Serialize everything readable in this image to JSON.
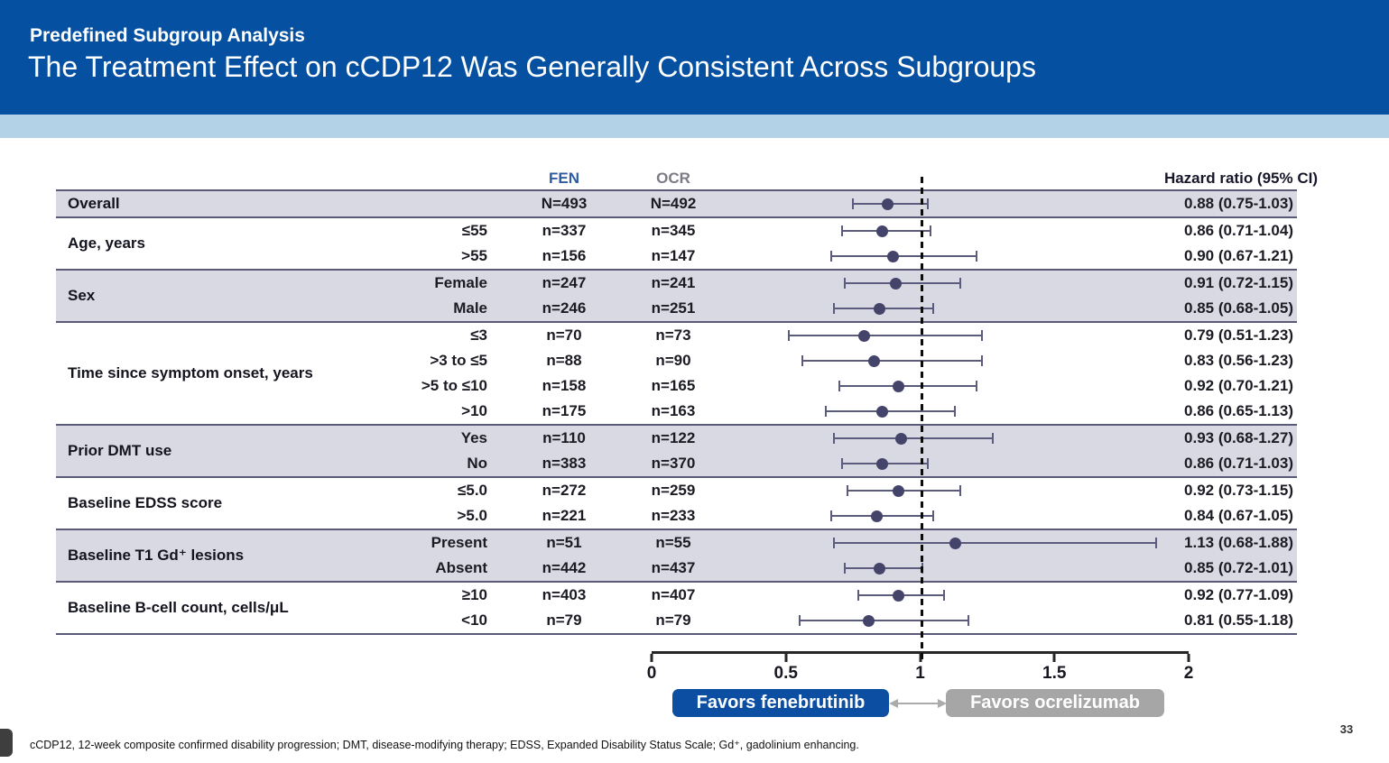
{
  "header": {
    "kicker": "Predefined Subgroup Analysis",
    "title": "The Treatment Effect on cCDP12 Was Generally Consistent Across Subgroups"
  },
  "table": {
    "col_fen": "FEN",
    "col_ocr": "OCR",
    "col_hr": "Hazard ratio (95% CI)"
  },
  "chart_data": {
    "type": "forest",
    "title": "Hazard ratios (95% CI) for cCDP12 by subgroup, FEN vs OCR",
    "axis": {
      "min": 0,
      "max": 2,
      "reference_line": 1,
      "ticks": [
        {
          "v": 0,
          "label": "0"
        },
        {
          "v": 0.5,
          "label": "0.5"
        },
        {
          "v": 1,
          "label": "1"
        },
        {
          "v": 1.5,
          "label": "1.5"
        },
        {
          "v": 2,
          "label": "2"
        }
      ]
    },
    "favors_left": "Favors fenebrutinib",
    "favors_right": "Favors ocrelizumab",
    "groups": [
      {
        "label": "Overall",
        "shaded": true,
        "rows": [
          {
            "sub": "",
            "fen": "N=493",
            "ocr": "N=492",
            "hr": 0.88,
            "lo": 0.75,
            "hi": 1.03,
            "hr_text": "0.88 (0.75-1.03)"
          }
        ]
      },
      {
        "label": "Age, years",
        "shaded": false,
        "rows": [
          {
            "sub": "≤55",
            "fen": "n=337",
            "ocr": "n=345",
            "hr": 0.86,
            "lo": 0.71,
            "hi": 1.04,
            "hr_text": "0.86 (0.71-1.04)"
          },
          {
            "sub": ">55",
            "fen": "n=156",
            "ocr": "n=147",
            "hr": 0.9,
            "lo": 0.67,
            "hi": 1.21,
            "hr_text": "0.90 (0.67-1.21)"
          }
        ]
      },
      {
        "label": "Sex",
        "shaded": true,
        "rows": [
          {
            "sub": "Female",
            "fen": "n=247",
            "ocr": "n=241",
            "hr": 0.91,
            "lo": 0.72,
            "hi": 1.15,
            "hr_text": "0.91 (0.72-1.15)"
          },
          {
            "sub": "Male",
            "fen": "n=246",
            "ocr": "n=251",
            "hr": 0.85,
            "lo": 0.68,
            "hi": 1.05,
            "hr_text": "0.85 (0.68-1.05)"
          }
        ]
      },
      {
        "label": "Time since symptom onset, years",
        "shaded": false,
        "rows": [
          {
            "sub": "≤3",
            "fen": "n=70",
            "ocr": "n=73",
            "hr": 0.79,
            "lo": 0.51,
            "hi": 1.23,
            "hr_text": "0.79 (0.51-1.23)"
          },
          {
            "sub": ">3 to ≤5",
            "fen": "n=88",
            "ocr": "n=90",
            "hr": 0.83,
            "lo": 0.56,
            "hi": 1.23,
            "hr_text": "0.83 (0.56-1.23)"
          },
          {
            "sub": ">5 to ≤10",
            "fen": "n=158",
            "ocr": "n=165",
            "hr": 0.92,
            "lo": 0.7,
            "hi": 1.21,
            "hr_text": "0.92 (0.70-1.21)"
          },
          {
            "sub": ">10",
            "fen": "n=175",
            "ocr": "n=163",
            "hr": 0.86,
            "lo": 0.65,
            "hi": 1.13,
            "hr_text": "0.86 (0.65-1.13)"
          }
        ]
      },
      {
        "label": "Prior DMT use",
        "shaded": true,
        "rows": [
          {
            "sub": "Yes",
            "fen": "n=110",
            "ocr": "n=122",
            "hr": 0.93,
            "lo": 0.68,
            "hi": 1.27,
            "hr_text": "0.93 (0.68-1.27)"
          },
          {
            "sub": "No",
            "fen": "n=383",
            "ocr": "n=370",
            "hr": 0.86,
            "lo": 0.71,
            "hi": 1.03,
            "hr_text": "0.86 (0.71-1.03)"
          }
        ]
      },
      {
        "label": "Baseline EDSS score",
        "shaded": false,
        "rows": [
          {
            "sub": "≤5.0",
            "fen": "n=272",
            "ocr": "n=259",
            "hr": 0.92,
            "lo": 0.73,
            "hi": 1.15,
            "hr_text": "0.92 (0.73-1.15)"
          },
          {
            "sub": ">5.0",
            "fen": "n=221",
            "ocr": "n=233",
            "hr": 0.84,
            "lo": 0.67,
            "hi": 1.05,
            "hr_text": "0.84 (0.67-1.05)"
          }
        ]
      },
      {
        "label": "Baseline T1 Gd⁺ lesions",
        "shaded": true,
        "rows": [
          {
            "sub": "Present",
            "fen": "n=51",
            "ocr": "n=55",
            "hr": 1.13,
            "lo": 0.68,
            "hi": 1.88,
            "hr_text": "1.13 (0.68-1.88)"
          },
          {
            "sub": "Absent",
            "fen": "n=442",
            "ocr": "n=437",
            "hr": 0.85,
            "lo": 0.72,
            "hi": 1.01,
            "hr_text": "0.85 (0.72-1.01)"
          }
        ]
      },
      {
        "label": "Baseline B-cell count, cells/μL",
        "shaded": false,
        "rows": [
          {
            "sub": "≥10",
            "fen": "n=403",
            "ocr": "n=407",
            "hr": 0.92,
            "lo": 0.77,
            "hi": 1.09,
            "hr_text": "0.92 (0.77-1.09)"
          },
          {
            "sub": "<10",
            "fen": "n=79",
            "ocr": "n=79",
            "hr": 0.81,
            "lo": 0.55,
            "hi": 1.18,
            "hr_text": "0.81 (0.55-1.18)"
          }
        ]
      }
    ]
  },
  "footnote": "cCDP12, 12-week composite confirmed disability progression; DMT, disease-modifying therapy; EDSS, Expanded Disability Status Scale; Gd⁺, gadolinium enhancing.",
  "page_number": "33",
  "colors": {
    "banner_blue": "#0550A0",
    "strip_blue": "#B4D2E7",
    "row_shade": "#D9D9E3",
    "group_border": "#5A5A78",
    "marker": "#44446A",
    "ci_line": "#5B5B7E",
    "fen_blue": "#2D5BA6",
    "ocr_gray": "#7B7B85",
    "favors_blue": "#0B4EA2",
    "favors_gray": "#A6A6A6"
  }
}
